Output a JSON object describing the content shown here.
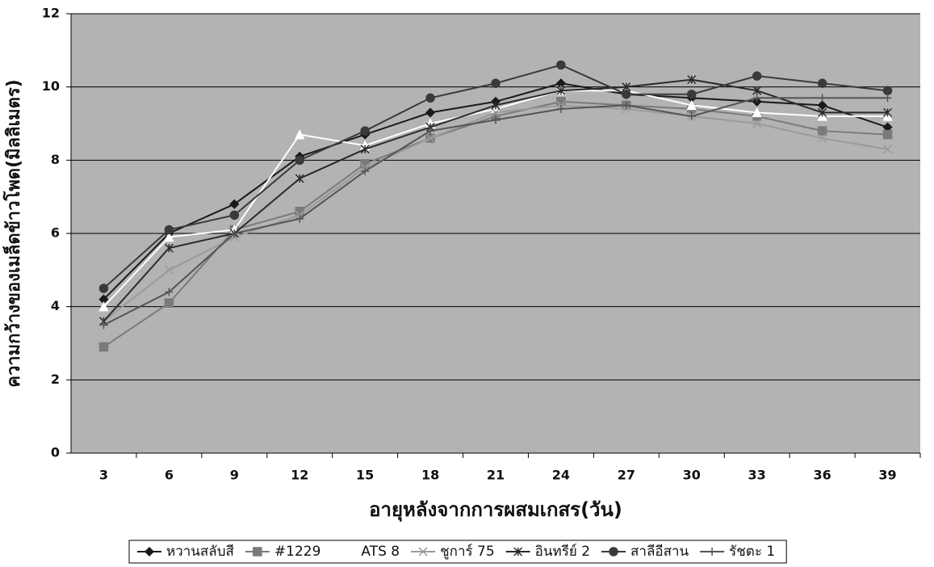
{
  "chart_data": {
    "type": "line",
    "y_label": "ความกว้างของเมล็ดข้าวโพด(มิลลิเมตร)",
    "x_label": "อายุหลังจากการผสมเกสร(วัน)",
    "categories": [
      3,
      6,
      9,
      12,
      15,
      18,
      21,
      24,
      27,
      30,
      33,
      36,
      39
    ],
    "ylim": [
      0,
      12
    ],
    "yticks": [
      0,
      2,
      4,
      6,
      8,
      10,
      12
    ],
    "grid": true,
    "legend": "bottom",
    "series": [
      {
        "name": "หวานสลับสี",
        "color": "#1a1a1a",
        "marker": "diamond",
        "values": [
          4.2,
          6.0,
          6.8,
          8.1,
          8.7,
          9.3,
          9.6,
          10.1,
          9.8,
          9.7,
          9.6,
          9.5,
          8.9
        ]
      },
      {
        "name": "#1229",
        "color": "#7a7a7a",
        "marker": "square",
        "values": [
          2.9,
          4.1,
          6.1,
          6.6,
          7.9,
          8.6,
          9.2,
          9.6,
          9.5,
          9.4,
          9.2,
          8.8,
          8.7
        ]
      },
      {
        "name": "ATS 8",
        "color": "#ffffff",
        "marker": "triangle",
        "values": [
          4.0,
          5.9,
          6.1,
          8.7,
          8.4,
          9.0,
          9.4,
          9.9,
          9.9,
          9.5,
          9.3,
          9.2,
          9.2
        ]
      },
      {
        "name": "ชูการ์ 75",
        "color": "#9a9a9a",
        "marker": "x",
        "values": [
          3.6,
          5.0,
          5.9,
          6.5,
          7.8,
          8.6,
          9.3,
          9.5,
          9.4,
          9.2,
          9.0,
          8.6,
          8.3
        ]
      },
      {
        "name": "อินทรีย์ 2",
        "color": "#2a2a2a",
        "marker": "star",
        "values": [
          3.6,
          5.6,
          6.0,
          7.5,
          8.3,
          8.9,
          9.5,
          9.9,
          10.0,
          10.2,
          9.9,
          9.3,
          9.3
        ]
      },
      {
        "name": "สาลีอีสาน",
        "color": "#3a3a3a",
        "marker": "circle",
        "values": [
          4.5,
          6.1,
          6.5,
          8.0,
          8.8,
          9.7,
          10.1,
          10.6,
          9.8,
          9.8,
          10.3,
          10.1,
          9.9
        ]
      },
      {
        "name": "รัชตะ 1",
        "color": "#555555",
        "marker": "plus",
        "values": [
          3.5,
          4.4,
          6.0,
          6.4,
          7.7,
          8.8,
          9.1,
          9.4,
          9.5,
          9.2,
          9.7,
          9.7,
          9.7
        ]
      }
    ]
  }
}
